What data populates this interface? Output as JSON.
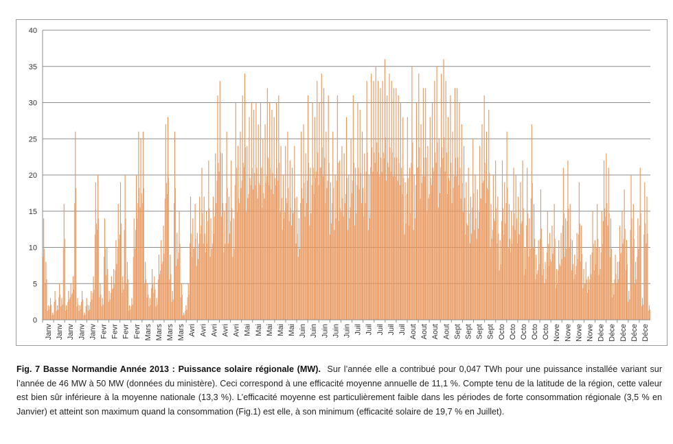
{
  "chart_data": {
    "type": "bar",
    "title": "",
    "xlabel": "",
    "ylabel": "",
    "ylim": [
      0,
      40
    ],
    "yticks": [
      "0",
      "5",
      "10",
      "15",
      "20",
      "25",
      "30",
      "35",
      "40"
    ],
    "grid": true,
    "bar_color": "#e8955a",
    "xticklabels": [
      "Janv",
      "Janv",
      "Janv",
      "Janv",
      "Janv",
      "Fevr",
      "Fevr",
      "Fevr",
      "Fevr",
      "Mars",
      "Mars",
      "Mars",
      "Mars",
      "Avri",
      "Avri",
      "Avri",
      "Avri",
      "Avri",
      "Mai",
      "Mai",
      "Mai",
      "Mai",
      "Mai",
      "Juin",
      "Juin",
      "Juin",
      "Juin",
      "Juin",
      "Juil",
      "Juil",
      "Juil",
      "Juil",
      "Juil",
      "Aout",
      "Aout",
      "Aout",
      "Aout",
      "Sept",
      "Sept",
      "Sept",
      "Sept",
      "Octo",
      "Octo",
      "Octo",
      "Octo",
      "Octo",
      "Nove",
      "Nove",
      "Nove",
      "Nove",
      "Déce",
      "Déce",
      "Déce",
      "Déce",
      "Déce"
    ],
    "daily_peak_mw": [
      14,
      8,
      2,
      3,
      1,
      4,
      2,
      5,
      3,
      16,
      2,
      4,
      5,
      6,
      26,
      3,
      2,
      4,
      1,
      3,
      2,
      4,
      6,
      19,
      20,
      5,
      3,
      14,
      10,
      4,
      6,
      7,
      11,
      16,
      19,
      6,
      20,
      8,
      2,
      3,
      14,
      20,
      26,
      25,
      26,
      8,
      5,
      3,
      7,
      6,
      3,
      9,
      11,
      13,
      27,
      28,
      9,
      4,
      26,
      12,
      15,
      5,
      1,
      2,
      5,
      17,
      14,
      16,
      12,
      17,
      21,
      17,
      15,
      22,
      14,
      17,
      23,
      31,
      33,
      23,
      15,
      26,
      17,
      22,
      14,
      30,
      24,
      26,
      31,
      34,
      24,
      28,
      30,
      29,
      30,
      27,
      30,
      25,
      27,
      32,
      30,
      29,
      28,
      30,
      31,
      24,
      20,
      24,
      26,
      22,
      21,
      24,
      17,
      14,
      26,
      27,
      23,
      31,
      21,
      30,
      28,
      33,
      30,
      34,
      32,
      26,
      31,
      19,
      26,
      20,
      31,
      22,
      24,
      23,
      28,
      20,
      25,
      31,
      21,
      30,
      29,
      26,
      23,
      33,
      20,
      34,
      33,
      35,
      33,
      32,
      33,
      36,
      31,
      34,
      33,
      32,
      32,
      31,
      30,
      28,
      19,
      28,
      21,
      35,
      20,
      30,
      34,
      27,
      32,
      32,
      24,
      28,
      30,
      33,
      35,
      25,
      34,
      36,
      33,
      28,
      31,
      26,
      32,
      32,
      30,
      27,
      24,
      19,
      21,
      17,
      25,
      20,
      18,
      24,
      27,
      31,
      26,
      29,
      16,
      20,
      22,
      17,
      11,
      22,
      19,
      26,
      16,
      15,
      21,
      20,
      17,
      19,
      22,
      10,
      21,
      14,
      27,
      16,
      9,
      11,
      18,
      10,
      8,
      15,
      12,
      13,
      16,
      7,
      11,
      12,
      21,
      14,
      22,
      16,
      11,
      9,
      12,
      19,
      13,
      7,
      8,
      6,
      9,
      15,
      11,
      16,
      10,
      15,
      22,
      23,
      21,
      14,
      5,
      9,
      8,
      13,
      15,
      18,
      11,
      4,
      20,
      16,
      8,
      14,
      21,
      3,
      19,
      17,
      2
    ]
  },
  "caption": {
    "title": "Fig. 7 Basse Normandie Année 2013 : Puissance solaire régionale (MW).",
    "body": "Sur l’année elle a contribué pour 0,047 TWh pour une puissance installée variant sur l’année de 46 MW à 50 MW (données du ministère). Ceci correspond à une efficacité moyenne annuelle de 11,1 %. Compte tenu de la latitude de la région, cette valeur est bien sûr inférieure à la moyenne nationale (13,3 %). L’efficacité moyenne est particulièrement faible dans les périodes de forte consommation régionale (3,5 % en Janvier) et atteint son maximum quand la consommation (Fig.1) est elle, à son minimum (efficacité solaire de 19,7 % en Juillet)."
  }
}
